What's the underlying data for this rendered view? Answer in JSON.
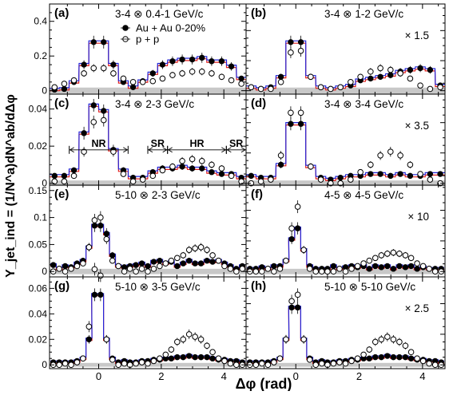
{
  "figure": {
    "ylabel": "Y_jet_ind = (1/N^a)dN^ab/dΔφ",
    "xlabel": "Δφ (rad)",
    "x_ticks": [
      0,
      2,
      4
    ],
    "legend": {
      "entries": [
        "Au + Au 0-20%",
        "p + p"
      ]
    },
    "regions": {
      "labels": [
        "NR",
        "SR",
        "HR",
        "SR"
      ],
      "bounds": [
        -0.94,
        0.94,
        1.57,
        2.2,
        4.08,
        4.71
      ]
    }
  },
  "chart_data": [
    {
      "type": "scatter",
      "panel": "a",
      "title": "3-4 ⊗ 0.4-1 GeV/c",
      "scale_label": "",
      "ylim": [
        -0.02,
        0.5
      ],
      "yticks": [
        0,
        0.2,
        0.4
      ],
      "band": 0.018,
      "x": [
        -1.41,
        -1.1,
        -0.79,
        -0.47,
        -0.16,
        0.16,
        0.47,
        0.79,
        1.1,
        1.41,
        1.73,
        2.04,
        2.36,
        2.67,
        2.99,
        3.3,
        3.61,
        3.93,
        4.24,
        4.56
      ],
      "series": [
        {
          "name": "Au + Au 0-20%",
          "values": [
            0.006,
            0.01,
            0.05,
            0.15,
            0.28,
            0.28,
            0.15,
            0.05,
            0.02,
            0.055,
            0.1,
            0.15,
            0.17,
            0.18,
            0.18,
            0.19,
            0.17,
            0.17,
            0.14,
            0.07
          ]
        },
        {
          "name": "p + p",
          "values": [
            0.02,
            0.04,
            0.06,
            0.1,
            0.13,
            0.13,
            0.1,
            0.07,
            0.05,
            0.05,
            0.055,
            0.07,
            0.09,
            0.1,
            0.11,
            0.11,
            0.1,
            0.08,
            0.06,
            0.04
          ]
        }
      ]
    },
    {
      "type": "scatter",
      "panel": "b",
      "title": "3-4 ⊗ 1-2 GeV/c",
      "scale_label": "× 1.5",
      "ylim": [
        -0.02,
        0.5
      ],
      "yticks": [],
      "band": 0.018,
      "x": [
        -1.41,
        -1.1,
        -0.79,
        -0.47,
        -0.16,
        0.16,
        0.47,
        0.79,
        1.1,
        1.41,
        1.73,
        2.04,
        2.36,
        2.67,
        2.99,
        3.3,
        3.61,
        3.93,
        4.24,
        4.56
      ],
      "series": [
        {
          "name": "Au + Au 0-20%",
          "values": [
            0.02,
            0.01,
            0.02,
            0.08,
            0.28,
            0.28,
            0.08,
            0.02,
            0.01,
            0.02,
            0.03,
            0.06,
            0.07,
            0.08,
            0.09,
            0.11,
            0.12,
            0.13,
            0.12,
            0.03
          ]
        },
        {
          "name": "p + p",
          "values": [
            0.02,
            0.01,
            0.01,
            0.05,
            0.22,
            0.23,
            0.08,
            0.02,
            0.01,
            0.02,
            0.05,
            0.08,
            0.11,
            0.13,
            0.12,
            0.1,
            0.07,
            0.03,
            0.01,
            0.02
          ]
        }
      ]
    },
    {
      "type": "scatter",
      "panel": "c",
      "title": "3-4 ⊗ 2-3 GeV/c",
      "scale_label": "",
      "ylim": [
        -0.001,
        0.048
      ],
      "yticks": [
        0,
        0.02,
        0.04
      ],
      "band": 0.0015,
      "x": [
        -1.41,
        -1.1,
        -0.79,
        -0.47,
        -0.16,
        0.16,
        0.47,
        0.79,
        1.1,
        1.41,
        1.73,
        2.04,
        2.36,
        2.67,
        2.99,
        3.3,
        3.61,
        3.93,
        4.24,
        4.56
      ],
      "series": [
        {
          "name": "Au + Au 0-20%",
          "values": [
            0.004,
            0.004,
            0.007,
            0.027,
            0.042,
            0.039,
            0.018,
            0.007,
            0.003,
            0.003,
            0.006,
            0.008,
            0.008,
            0.009,
            0.008,
            0.008,
            0.006,
            0.005,
            0.005,
            0.003
          ]
        },
        {
          "name": "p + p",
          "values": [
            0.001,
            0.001,
            0.004,
            0.017,
            0.033,
            0.034,
            0.017,
            0.005,
            0.001,
            0.002,
            0.004,
            0.007,
            0.009,
            0.012,
            0.013,
            0.012,
            0.01,
            0.008,
            0.004,
            0.001
          ]
        }
      ]
    },
    {
      "type": "scatter",
      "panel": "d",
      "title": "3-4 ⊗ 3-4 GeV/c",
      "scale_label": "× 3.5",
      "ylim": [
        -0.001,
        0.048
      ],
      "yticks": [],
      "band": 0.0015,
      "x": [
        -1.41,
        -1.1,
        -0.79,
        -0.47,
        -0.16,
        0.16,
        0.47,
        0.79,
        1.1,
        1.41,
        1.73,
        2.04,
        2.36,
        2.67,
        2.99,
        3.3,
        3.61,
        3.93,
        4.24,
        4.56
      ],
      "series": [
        {
          "name": "Au + Au 0-20%",
          "values": [
            0.004,
            0.003,
            0.003,
            0.01,
            0.032,
            0.032,
            0.009,
            0.003,
            0.002,
            0.003,
            0.004,
            0.004,
            0.005,
            0.005,
            0.004,
            0.005,
            0.004,
            0.004,
            0.005,
            0.005
          ]
        },
        {
          "name": "p + p",
          "values": [
            0.0,
            0.001,
            0.002,
            0.015,
            0.038,
            0.038,
            0.009,
            0.002,
            0.0,
            0.0,
            0.002,
            0.006,
            0.01,
            0.015,
            0.017,
            0.015,
            0.01,
            0.005,
            0.002,
            0.0
          ]
        }
      ]
    },
    {
      "type": "scatter",
      "panel": "e",
      "title": "5-10 ⊗ 2-3 GeV/c",
      "scale_label": "",
      "ylim": [
        -0.01,
        0.16
      ],
      "yticks": [
        0,
        0.05,
        0.1,
        0.15
      ],
      "band": 0.005,
      "x": [
        -1.45,
        -1.26,
        -1.07,
        -0.88,
        -0.69,
        -0.5,
        -0.31,
        -0.13,
        0.06,
        0.25,
        0.44,
        0.63,
        0.82,
        1.0,
        1.19,
        1.38,
        1.57,
        1.76,
        1.95,
        2.14,
        2.32,
        2.51,
        2.7,
        2.89,
        3.08,
        3.27,
        3.46,
        3.64,
        3.83,
        4.02,
        4.21,
        4.4,
        4.59
      ],
      "series": [
        {
          "name": "Au + Au 0-20%",
          "values": [
            0.012,
            0.005,
            0.01,
            0.008,
            0.015,
            0.02,
            0.045,
            0.085,
            0.085,
            0.07,
            0.03,
            0.01,
            0.008,
            0.01,
            0.012,
            0.015,
            0.01,
            0.018,
            0.02,
            0.015,
            0.018,
            0.01,
            0.015,
            0.02,
            0.015,
            0.015,
            0.02,
            0.018,
            0.02,
            0.015,
            0.01,
            0.005,
            0.01
          ]
        },
        {
          "name": "p + p",
          "values": [
            0.0,
            0.005,
            0.0,
            0.005,
            0.01,
            0.015,
            0.045,
            0.095,
            0.1,
            0.06,
            0.02,
            0.01,
            0.0,
            0.005,
            0.0,
            0.005,
            0.0,
            0.005,
            0.01,
            0.015,
            0.02,
            0.025,
            0.03,
            0.04,
            0.043,
            0.045,
            0.04,
            0.03,
            0.02,
            0.01,
            0.005,
            0.0,
            0.005
          ]
        }
      ]
    },
    {
      "type": "scatter",
      "panel": "f",
      "title": "4-5 ⊗ 4-5 GeV/c",
      "scale_label": "× 10",
      "ylim": [
        -0.01,
        0.16
      ],
      "yticks": [],
      "band": 0.005,
      "x": [
        -1.45,
        -1.26,
        -1.07,
        -0.88,
        -0.69,
        -0.5,
        -0.31,
        -0.13,
        0.06,
        0.25,
        0.44,
        0.63,
        0.82,
        1.0,
        1.19,
        1.38,
        1.57,
        1.76,
        1.95,
        2.14,
        2.32,
        2.51,
        2.7,
        2.89,
        3.08,
        3.27,
        3.46,
        3.64,
        3.83,
        4.02,
        4.21,
        4.4,
        4.59
      ],
      "series": [
        {
          "name": "Au + Au 0-20%",
          "values": [
            0.005,
            0.005,
            0.008,
            0.005,
            0.01,
            0.01,
            0.02,
            0.06,
            0.08,
            0.04,
            0.01,
            0.005,
            0.005,
            0.005,
            0.01,
            0.005,
            0.008,
            0.01,
            0.008,
            0.01,
            0.005,
            0.01,
            0.008,
            0.01,
            0.005,
            0.01,
            0.008,
            0.01,
            0.005,
            0.008,
            0.005,
            0.005,
            0.005
          ]
        },
        {
          "name": "p + p",
          "values": [
            0.0,
            0.0,
            0.0,
            0.005,
            0.0,
            0.005,
            0.02,
            0.08,
            0.12,
            0.04,
            0.005,
            0.0,
            0.0,
            0.0,
            0.0,
            0.005,
            0.0,
            0.005,
            0.01,
            0.015,
            0.02,
            0.025,
            0.03,
            0.033,
            0.035,
            0.033,
            0.03,
            0.025,
            0.015,
            0.01,
            0.005,
            0.0,
            0.0
          ]
        }
      ]
    },
    {
      "type": "scatter",
      "panel": "g",
      "title": "5-10 ⊗ 3-5 GeV/c",
      "scale_label": "",
      "ylim": [
        -0.003,
        0.069
      ],
      "yticks": [
        0,
        0.02,
        0.04,
        0.06
      ],
      "band": 0.0015,
      "x": [
        -1.45,
        -1.26,
        -1.07,
        -0.88,
        -0.69,
        -0.5,
        -0.31,
        -0.13,
        0.06,
        0.25,
        0.44,
        0.63,
        0.82,
        1.0,
        1.19,
        1.38,
        1.57,
        1.76,
        1.95,
        2.14,
        2.32,
        2.51,
        2.7,
        2.89,
        3.08,
        3.27,
        3.46,
        3.64,
        3.83,
        4.02,
        4.21,
        4.4,
        4.59
      ],
      "series": [
        {
          "name": "Au + Au 0-20%",
          "values": [
            0.002,
            0.002,
            0.002,
            0.002,
            0.003,
            0.005,
            0.02,
            0.055,
            0.055,
            0.02,
            0.005,
            0.002,
            0.003,
            0.002,
            0.002,
            0.003,
            0.003,
            0.004,
            0.004,
            0.005,
            0.005,
            0.006,
            0.006,
            0.007,
            0.006,
            0.006,
            0.006,
            0.005,
            0.004,
            0.004,
            0.003,
            0.003,
            0.002
          ]
        },
        {
          "name": "p + p",
          "values": [
            0.0,
            0.0,
            0.001,
            0.0,
            0.002,
            0.005,
            0.03,
            0.075,
            0.07,
            0.02,
            0.004,
            0.0,
            0.001,
            0.0,
            0.001,
            0.002,
            0.001,
            0.003,
            0.005,
            0.008,
            0.012,
            0.018,
            0.02,
            0.024,
            0.022,
            0.02,
            0.015,
            0.01,
            0.005,
            0.003,
            0.001,
            0.0,
            0.0
          ]
        }
      ]
    },
    {
      "type": "scatter",
      "panel": "h",
      "title": "5-10 ⊗ 5-10 GeV/c",
      "scale_label": "× 2.5",
      "ylim": [
        -0.003,
        0.069
      ],
      "yticks": [],
      "band": 0.0015,
      "x": [
        -1.45,
        -1.26,
        -1.07,
        -0.88,
        -0.69,
        -0.5,
        -0.31,
        -0.13,
        0.06,
        0.25,
        0.44,
        0.63,
        0.82,
        1.0,
        1.19,
        1.38,
        1.57,
        1.76,
        1.95,
        2.14,
        2.32,
        2.51,
        2.7,
        2.89,
        3.08,
        3.27,
        3.46,
        3.64,
        3.83,
        4.02,
        4.21,
        4.4,
        4.59
      ],
      "series": [
        {
          "name": "Au + Au 0-20%",
          "values": [
            0.002,
            0.002,
            0.002,
            0.002,
            0.003,
            0.005,
            0.02,
            0.045,
            0.045,
            0.02,
            0.005,
            0.002,
            0.003,
            0.002,
            0.002,
            0.003,
            0.003,
            0.004,
            0.004,
            0.005,
            0.005,
            0.006,
            0.006,
            0.007,
            0.006,
            0.006,
            0.006,
            0.005,
            0.004,
            0.004,
            0.003,
            0.003,
            0.002
          ]
        },
        {
          "name": "p + p",
          "values": [
            0.0,
            0.0,
            0.001,
            0.0,
            0.002,
            0.005,
            0.02,
            0.05,
            0.055,
            0.02,
            0.004,
            0.0,
            0.001,
            0.0,
            0.001,
            0.002,
            0.001,
            0.003,
            0.005,
            0.008,
            0.012,
            0.018,
            0.02,
            0.022,
            0.02,
            0.018,
            0.015,
            0.01,
            0.005,
            0.003,
            0.001,
            0.0,
            0.0
          ]
        }
      ]
    }
  ]
}
